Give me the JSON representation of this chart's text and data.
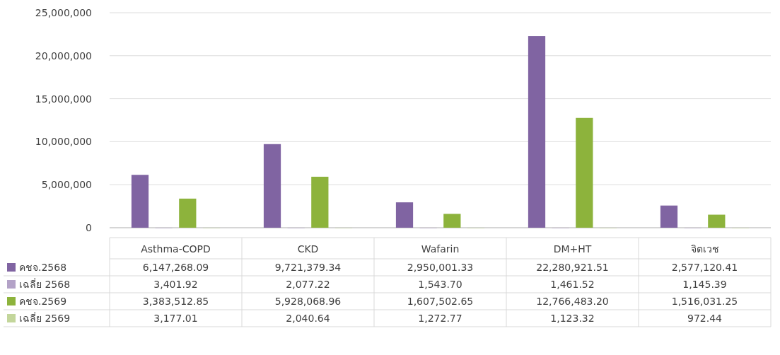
{
  "chart_data": {
    "type": "bar",
    "categories": [
      "Asthma-COPD",
      "CKD",
      "Wafarin",
      "DM+HT",
      "จิตเวช"
    ],
    "series": [
      {
        "name": "คชจ.2568",
        "color": "#8064a2",
        "values": [
          6147268.09,
          9721379.34,
          2950001.33,
          22280921.51,
          2577120.41
        ],
        "value_labels": [
          "6,147,268.09",
          "9,721,379.34",
          "2,950,001.33",
          "22,280,921.51",
          "2,577,120.41"
        ]
      },
      {
        "name": "เฉลี่ย 2568",
        "color": "#b3a2c7",
        "values": [
          3401.92,
          2077.22,
          1543.7,
          1461.52,
          1145.39
        ],
        "value_labels": [
          "3,401.92",
          "2,077.22",
          "1,543.70",
          "1,461.52",
          "1,145.39"
        ]
      },
      {
        "name": "คชจ.2569",
        "color": "#8db33c",
        "values": [
          3383512.85,
          5928068.96,
          1607502.65,
          12766483.2,
          1516031.25
        ],
        "value_labels": [
          "3,383,512.85",
          "5,928,068.96",
          "1,607,502.65",
          "12,766,483.20",
          "1,516,031.25"
        ]
      },
      {
        "name": "เฉลี่ย 2569",
        "color": "#c3d69b",
        "values": [
          3177.01,
          2040.64,
          1272.77,
          1123.32,
          972.44
        ],
        "value_labels": [
          "3,177.01",
          "2,040.64",
          "1,272.77",
          "1,123.32",
          "972.44"
        ]
      }
    ],
    "ylim": [
      0,
      25000000
    ],
    "yticks": [
      {
        "value": 0,
        "label": "0"
      },
      {
        "value": 5000000,
        "label": "5,000,000"
      },
      {
        "value": 10000000,
        "label": "10,000,000"
      },
      {
        "value": 15000000,
        "label": "15,000,000"
      },
      {
        "value": 20000000,
        "label": "20,000,000"
      },
      {
        "value": 25000000,
        "label": "25,000,000"
      }
    ],
    "grid": "y",
    "legend": "bottom"
  }
}
